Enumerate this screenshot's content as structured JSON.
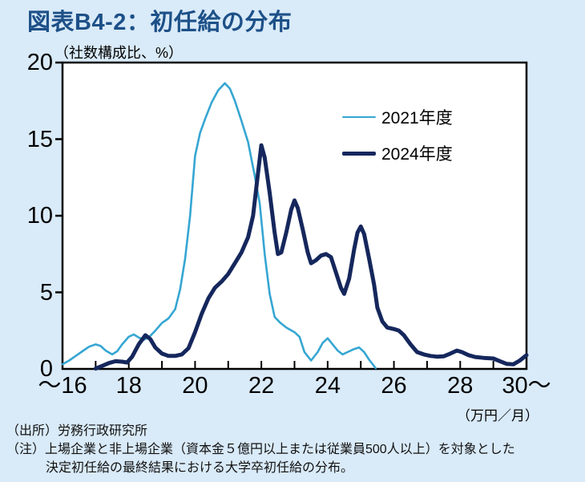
{
  "title": "図表B4-2：初任給の分布",
  "y_axis_unit": "（社数構成比、%）",
  "x_axis_unit": "（万円／月）",
  "notes": {
    "source": "（出所）労務行政研究所",
    "note1": "（注）上場企業と非上場企業（資本金５億円以上または従業員500人以上）を対象とした",
    "note2": "決定初任給の最終結果における大学卒初任給の分布。"
  },
  "colors": {
    "background": "#D9EAF8",
    "plot_background": "#FFFFFF",
    "title": "#1D5088",
    "axis": "#000000",
    "series_2021": "#35A6D2",
    "series_2024": "#15275C"
  },
  "chart_data": {
    "type": "line",
    "title": "図表B4-2：初任給の分布",
    "xlabel": "（万円／月）",
    "ylabel": "（社数構成比、%）",
    "xlim": [
      16,
      30
    ],
    "ylim": [
      0,
      20
    ],
    "grid": false,
    "legend_position": "upper-right-inside",
    "y_tick_values": [
      0,
      5,
      10,
      15,
      20
    ],
    "x_minor_ticks": [
      17,
      18,
      19,
      20,
      21,
      22,
      23,
      24,
      25,
      26,
      27,
      28,
      29
    ],
    "x_tick_labels": [
      {
        "x": 16,
        "label": "～16"
      },
      {
        "x": 18,
        "label": "18"
      },
      {
        "x": 20,
        "label": "20"
      },
      {
        "x": 22,
        "label": "22"
      },
      {
        "x": 24,
        "label": "24"
      },
      {
        "x": 26,
        "label": "26"
      },
      {
        "x": 28,
        "label": "28"
      },
      {
        "x": 30,
        "label": "30～"
      }
    ],
    "series": [
      {
        "name": "2021年度",
        "color": "#35A6D2",
        "stroke_width": 2.6,
        "points": [
          [
            16,
            0.3
          ],
          [
            16.2,
            0.55
          ],
          [
            16.4,
            0.85
          ],
          [
            16.6,
            1.15
          ],
          [
            16.8,
            1.45
          ],
          [
            17.0,
            1.6
          ],
          [
            17.15,
            1.5
          ],
          [
            17.3,
            1.2
          ],
          [
            17.5,
            0.95
          ],
          [
            17.65,
            1.15
          ],
          [
            17.8,
            1.6
          ],
          [
            18.0,
            2.1
          ],
          [
            18.15,
            2.25
          ],
          [
            18.3,
            2.05
          ],
          [
            18.45,
            1.9
          ],
          [
            18.6,
            2.05
          ],
          [
            18.8,
            2.5
          ],
          [
            19.0,
            3.0
          ],
          [
            19.2,
            3.3
          ],
          [
            19.4,
            3.9
          ],
          [
            19.55,
            5.2
          ],
          [
            19.7,
            7.2
          ],
          [
            19.85,
            10.0
          ],
          [
            20.0,
            13.9
          ],
          [
            20.15,
            15.4
          ],
          [
            20.3,
            16.3
          ],
          [
            20.5,
            17.4
          ],
          [
            20.7,
            18.2
          ],
          [
            20.9,
            18.65
          ],
          [
            21.05,
            18.3
          ],
          [
            21.2,
            17.5
          ],
          [
            21.4,
            16.2
          ],
          [
            21.6,
            14.8
          ],
          [
            21.8,
            12.6
          ],
          [
            21.95,
            10.8
          ],
          [
            22.1,
            7.5
          ],
          [
            22.25,
            4.9
          ],
          [
            22.4,
            3.4
          ],
          [
            22.55,
            3.05
          ],
          [
            22.75,
            2.7
          ],
          [
            23.0,
            2.4
          ],
          [
            23.15,
            2.1
          ],
          [
            23.3,
            1.1
          ],
          [
            23.5,
            0.55
          ],
          [
            23.7,
            1.1
          ],
          [
            23.85,
            1.7
          ],
          [
            24.0,
            2.0
          ],
          [
            24.15,
            1.6
          ],
          [
            24.3,
            1.2
          ],
          [
            24.45,
            0.95
          ],
          [
            24.6,
            1.1
          ],
          [
            24.8,
            1.3
          ],
          [
            24.95,
            1.4
          ],
          [
            25.1,
            1.1
          ],
          [
            25.25,
            0.6
          ],
          [
            25.45,
            0.05
          ]
        ]
      },
      {
        "name": "2024年度",
        "color": "#15275C",
        "stroke_width": 5,
        "points": [
          [
            17.0,
            0.02
          ],
          [
            17.2,
            0.2
          ],
          [
            17.4,
            0.38
          ],
          [
            17.6,
            0.5
          ],
          [
            17.8,
            0.47
          ],
          [
            17.95,
            0.42
          ],
          [
            18.1,
            0.8
          ],
          [
            18.3,
            1.6
          ],
          [
            18.5,
            2.2
          ],
          [
            18.65,
            1.95
          ],
          [
            18.8,
            1.4
          ],
          [
            19.0,
            1.0
          ],
          [
            19.2,
            0.85
          ],
          [
            19.4,
            0.85
          ],
          [
            19.6,
            0.95
          ],
          [
            19.8,
            1.35
          ],
          [
            20.0,
            2.4
          ],
          [
            20.2,
            3.6
          ],
          [
            20.4,
            4.6
          ],
          [
            20.6,
            5.3
          ],
          [
            20.8,
            5.7
          ],
          [
            21.0,
            6.2
          ],
          [
            21.2,
            6.9
          ],
          [
            21.4,
            7.6
          ],
          [
            21.6,
            8.6
          ],
          [
            21.75,
            10.0
          ],
          [
            21.9,
            12.8
          ],
          [
            22.0,
            14.6
          ],
          [
            22.1,
            13.8
          ],
          [
            22.25,
            11.5
          ],
          [
            22.4,
            8.9
          ],
          [
            22.5,
            7.5
          ],
          [
            22.6,
            7.6
          ],
          [
            22.75,
            8.9
          ],
          [
            22.9,
            10.4
          ],
          [
            23.0,
            11.0
          ],
          [
            23.1,
            10.5
          ],
          [
            23.25,
            9.1
          ],
          [
            23.4,
            7.6
          ],
          [
            23.5,
            6.9
          ],
          [
            23.65,
            7.1
          ],
          [
            23.8,
            7.4
          ],
          [
            23.95,
            7.5
          ],
          [
            24.1,
            7.3
          ],
          [
            24.25,
            6.3
          ],
          [
            24.4,
            5.3
          ],
          [
            24.5,
            4.9
          ],
          [
            24.65,
            5.9
          ],
          [
            24.8,
            7.8
          ],
          [
            24.9,
            8.9
          ],
          [
            25.0,
            9.3
          ],
          [
            25.1,
            8.8
          ],
          [
            25.25,
            7.2
          ],
          [
            25.4,
            5.5
          ],
          [
            25.5,
            4.0
          ],
          [
            25.65,
            3.1
          ],
          [
            25.8,
            2.7
          ],
          [
            26.0,
            2.6
          ],
          [
            26.15,
            2.5
          ],
          [
            26.3,
            2.2
          ],
          [
            26.5,
            1.6
          ],
          [
            26.7,
            1.1
          ],
          [
            26.9,
            0.95
          ],
          [
            27.1,
            0.85
          ],
          [
            27.3,
            0.8
          ],
          [
            27.5,
            0.82
          ],
          [
            27.7,
            1.0
          ],
          [
            27.9,
            1.2
          ],
          [
            28.05,
            1.1
          ],
          [
            28.25,
            0.9
          ],
          [
            28.45,
            0.78
          ],
          [
            28.7,
            0.72
          ],
          [
            29.0,
            0.68
          ],
          [
            29.2,
            0.5
          ],
          [
            29.4,
            0.33
          ],
          [
            29.6,
            0.3
          ],
          [
            29.8,
            0.55
          ],
          [
            30.0,
            0.9
          ]
        ]
      }
    ]
  }
}
